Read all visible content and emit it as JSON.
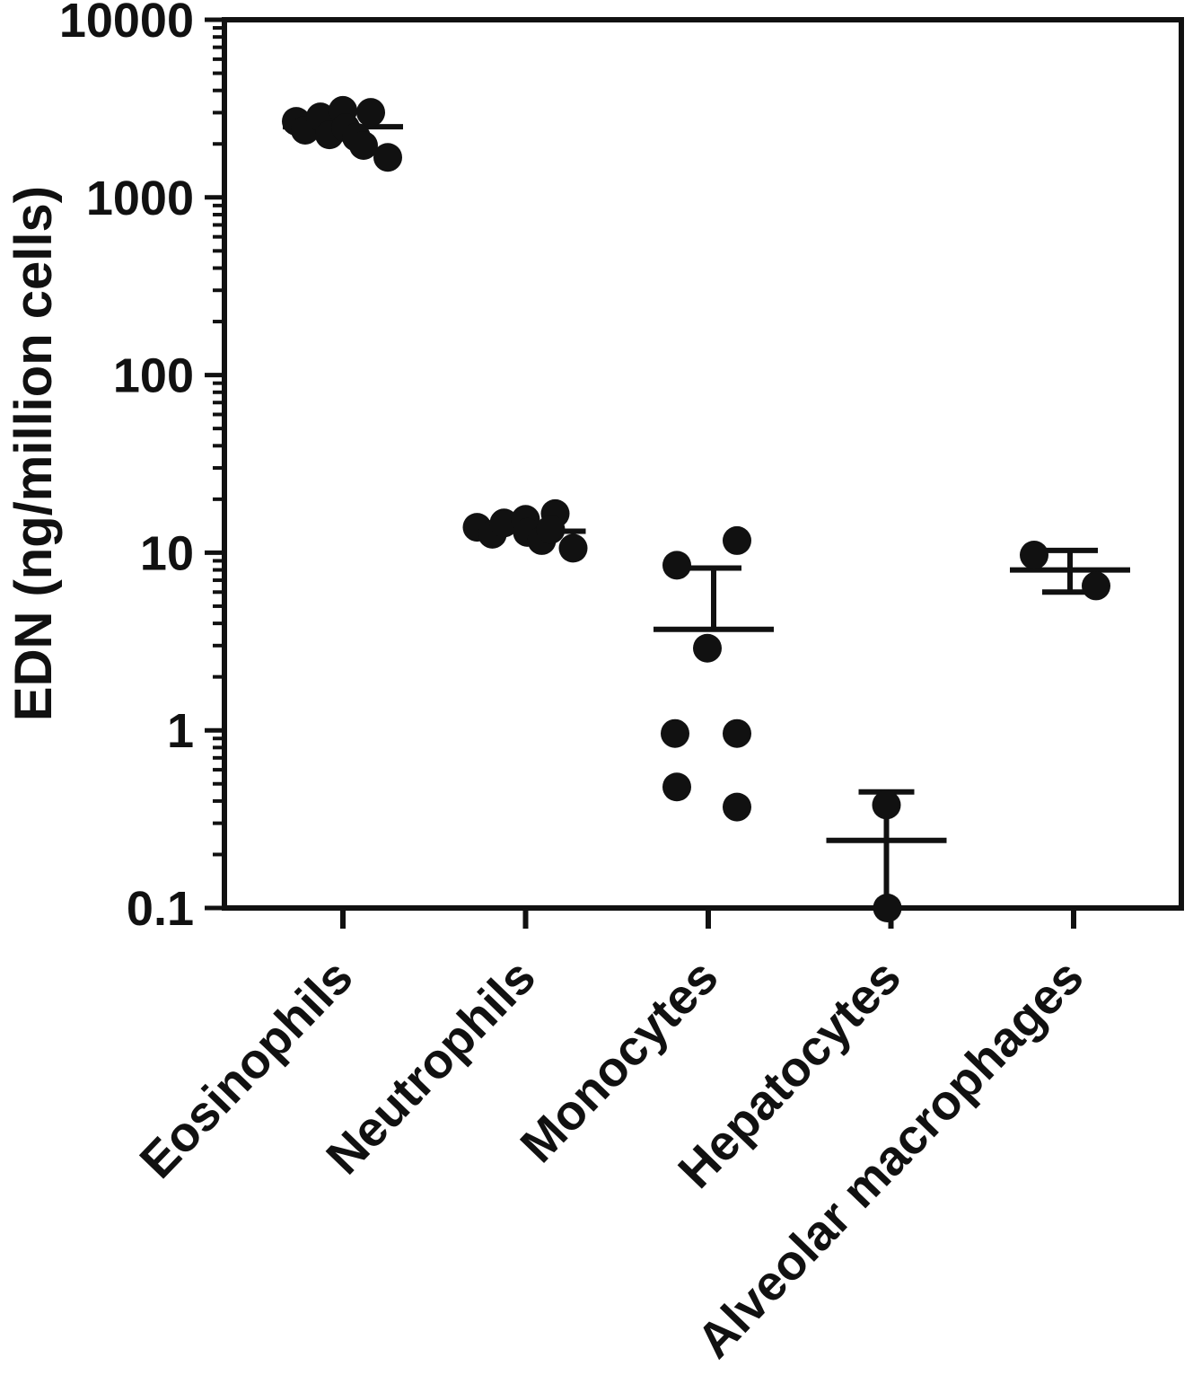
{
  "figure": {
    "background": "#ffffff",
    "ink_color": "#111111"
  },
  "chart_data": {
    "type": "scatter",
    "title": "",
    "xlabel": "",
    "ylabel": "EDN (ng/million cells)",
    "y_scale": "log",
    "ylim": [
      0.1,
      10000
    ],
    "y_tick_values": [
      10000,
      1000,
      100,
      10,
      1,
      0.1
    ],
    "y_tick_labels": [
      "10000",
      "1000",
      "100",
      "10",
      "1",
      "0.1"
    ],
    "minor_log_ticks": true,
    "grid": false,
    "legend": false,
    "marker_color": "#111111",
    "categories": [
      "Eosinophils",
      "Neutrophils",
      "Monocytes",
      "Hepatocytes",
      "Alveolar macrophages"
    ],
    "groups": [
      {
        "name": "Eosinophils",
        "mean": 2500,
        "error_upper": null,
        "error_lower": null,
        "upper_cap": false,
        "lower_cap": false,
        "err_dx": 0,
        "points": [
          {
            "value": 2680,
            "dx": -52
          },
          {
            "value": 2390,
            "dx": -42
          },
          {
            "value": 2840,
            "dx": -25
          },
          {
            "value": 2250,
            "dx": -15
          },
          {
            "value": 3090,
            "dx": 0
          },
          {
            "value": 2470,
            "dx": 3
          },
          {
            "value": 2180,
            "dx": 15
          },
          {
            "value": 3010,
            "dx": 31
          },
          {
            "value": 1960,
            "dx": 23
          },
          {
            "value": 1680,
            "dx": 50
          }
        ]
      },
      {
        "name": "Neutrophils",
        "mean": 13.2,
        "error_upper": null,
        "error_lower": null,
        "upper_cap": false,
        "lower_cap": false,
        "err_dx": 0,
        "points": [
          {
            "value": 13.9,
            "dx": -54
          },
          {
            "value": 12.7,
            "dx": -37
          },
          {
            "value": 14.7,
            "dx": -24
          },
          {
            "value": 15.4,
            "dx": 0
          },
          {
            "value": 13.0,
            "dx": 2
          },
          {
            "value": 11.7,
            "dx": 18
          },
          {
            "value": 16.6,
            "dx": 33
          },
          {
            "value": 13.5,
            "dx": 28
          },
          {
            "value": 10.6,
            "dx": 53
          }
        ]
      },
      {
        "name": "Monocytes",
        "mean": 3.7,
        "error_upper": 8.2,
        "error_lower": null,
        "upper_cap": true,
        "lower_cap": false,
        "err_dx": 6,
        "points": [
          {
            "value": 8.5,
            "dx": -35
          },
          {
            "value": 11.7,
            "dx": 32
          },
          {
            "value": 2.9,
            "dx": -1
          },
          {
            "value": 0.96,
            "dx": -37
          },
          {
            "value": 0.96,
            "dx": 32
          },
          {
            "value": 0.48,
            "dx": -35
          },
          {
            "value": 0.37,
            "dx": 32
          }
        ]
      },
      {
        "name": "Hepatocytes",
        "mean": 0.24,
        "error_upper": 0.45,
        "error_lower": 0.1,
        "upper_cap": true,
        "lower_cap": false,
        "err_dx": -5,
        "points": [
          {
            "value": 0.38,
            "dx": -5
          },
          {
            "value": 0.1,
            "dx": -4
          }
        ]
      },
      {
        "name": "Alveolar macrophages",
        "mean": 8.0,
        "error_upper": 10.3,
        "error_lower": 6.0,
        "upper_cap": true,
        "lower_cap": true,
        "err_dx": -4,
        "points": [
          {
            "value": 9.7,
            "dx": -44
          },
          {
            "value": 6.5,
            "dx": 25
          }
        ]
      }
    ]
  }
}
